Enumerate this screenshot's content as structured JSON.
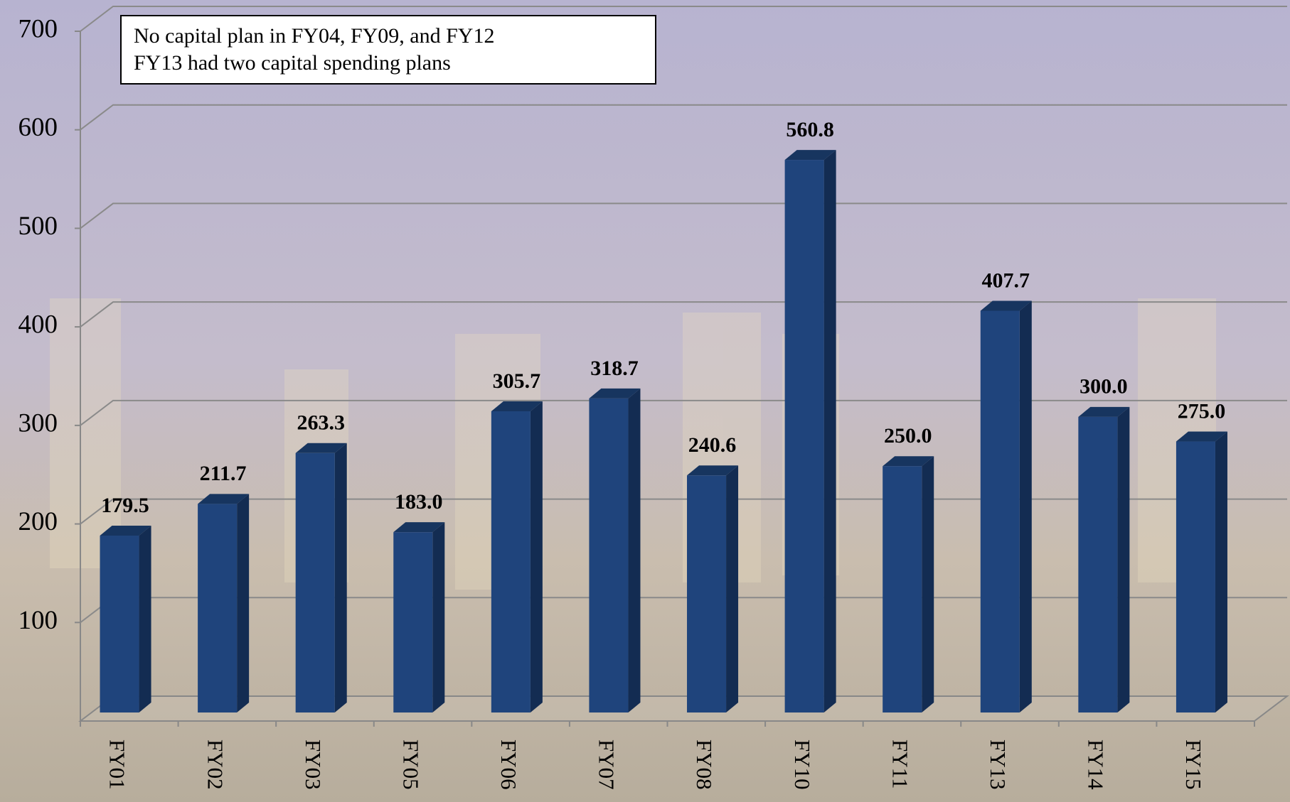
{
  "chart_data": {
    "type": "bar",
    "annotations": [
      "No capital plan in FY04, FY09, and FY12",
      "FY13 had  two capital spending plans"
    ],
    "categories": [
      "FY01",
      "FY02",
      "FY03",
      "FY05",
      "FY06",
      "FY07",
      "FY08",
      "FY10",
      "FY11",
      "FY13",
      "FY14",
      "FY15"
    ],
    "values": [
      179.5,
      211.7,
      263.3,
      183.0,
      305.7,
      318.7,
      240.6,
      560.8,
      250.0,
      407.7,
      300.0,
      275.0
    ],
    "value_labels": [
      "179.5",
      "211.7",
      "263.3",
      "183.0",
      "305.7",
      "318.7",
      "240.6",
      "560.8",
      "250.0",
      "407.7",
      "300.0",
      "275.0"
    ],
    "color": "#1f447c",
    "ylim": [
      0,
      700
    ],
    "yticks": [
      100,
      200,
      300,
      400,
      500,
      600,
      700
    ],
    "grid": true
  }
}
